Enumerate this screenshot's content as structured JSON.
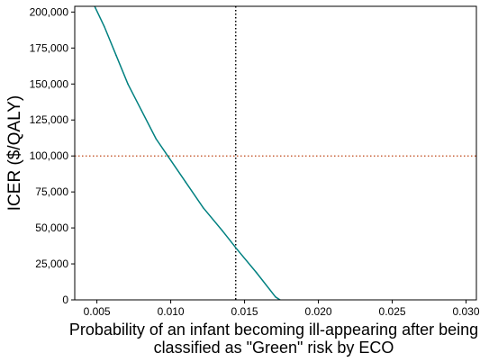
{
  "chart_data": {
    "type": "line",
    "title": "",
    "xlabel_lines": [
      "Probability of an infant becoming ill-appearing after being",
      "classified as \"Green\" risk by ECO"
    ],
    "ylabel": "ICER ($/QALY)",
    "xlim": [
      0.0035,
      0.0307
    ],
    "ylim": [
      0,
      204000
    ],
    "x_ticks": [
      0.005,
      0.01,
      0.015,
      0.02,
      0.025,
      0.03
    ],
    "x_tick_labels": [
      "0.005",
      "0.010",
      "0.015",
      "0.020",
      "0.025",
      "0.030"
    ],
    "y_ticks": [
      0,
      25000,
      50000,
      75000,
      100000,
      125000,
      150000,
      175000,
      200000
    ],
    "y_tick_labels": [
      "0",
      "25,000",
      "50,000",
      "75,000",
      "100,000",
      "125,000",
      "150,000",
      "175,000",
      "200,000"
    ],
    "grid": false,
    "series": [
      {
        "color": "#008080",
        "x": [
          0.0048,
          0.0055,
          0.0063,
          0.0071,
          0.008,
          0.009,
          0.0098,
          0.011,
          0.0122,
          0.0135,
          0.0145,
          0.0158,
          0.0171,
          0.0174
        ],
        "y": [
          205000,
          190000,
          170000,
          150000,
          132000,
          112000,
          100000,
          82000,
          64000,
          48000,
          35000,
          19000,
          2000,
          0
        ]
      }
    ],
    "reference_lines": [
      {
        "orientation": "vertical",
        "value": 0.0144,
        "color": "#000000",
        "style": "dotted"
      },
      {
        "orientation": "horizontal",
        "value": 100000,
        "color": "#c8643c",
        "style": "dotted"
      }
    ]
  }
}
